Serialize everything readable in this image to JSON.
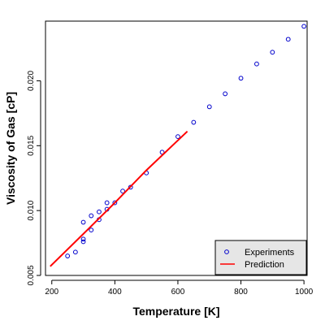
{
  "chart_data": {
    "type": "scatter",
    "title": "",
    "xlabel": "Temperature [K]",
    "ylabel": "Viscosity of Gas [cP]",
    "xlim": [
      180,
      1010
    ],
    "ylim": [
      0.005,
      0.0246
    ],
    "xticks": [
      200,
      400,
      600,
      800,
      1000
    ],
    "yticks": [
      0.005,
      0.01,
      0.015,
      0.02
    ],
    "ytick_labels": [
      "0.005",
      "0.010",
      "0.015",
      "0.020"
    ],
    "xtick_labels": [
      "200",
      "400",
      "600",
      "800",
      "1000"
    ],
    "grid": false,
    "legend_position": "bottom-right",
    "series": [
      {
        "name": "Experiments",
        "kind": "points",
        "color": "#0000cc",
        "x": [
          250,
          275,
          300,
          300,
          300,
          325,
          325,
          350,
          350,
          375,
          375,
          400,
          425,
          450,
          500,
          550,
          600,
          650,
          700,
          750,
          800,
          850,
          900,
          950,
          1000
        ],
        "y": [
          0.0065,
          0.0068,
          0.0076,
          0.0078,
          0.0091,
          0.0085,
          0.0096,
          0.0093,
          0.0099,
          0.0101,
          0.0106,
          0.0106,
          0.0115,
          0.0118,
          0.0129,
          0.0145,
          0.0157,
          0.0168,
          0.018,
          0.019,
          0.0202,
          0.0213,
          0.0222,
          0.0232,
          0.0242
        ]
      },
      {
        "name": "Prediction",
        "kind": "line",
        "color": "#ff0000",
        "x": [
          195,
          300,
          400,
          500,
          630
        ],
        "y": [
          0.0057,
          0.0082,
          0.0106,
          0.0131,
          0.0161
        ]
      }
    ]
  }
}
